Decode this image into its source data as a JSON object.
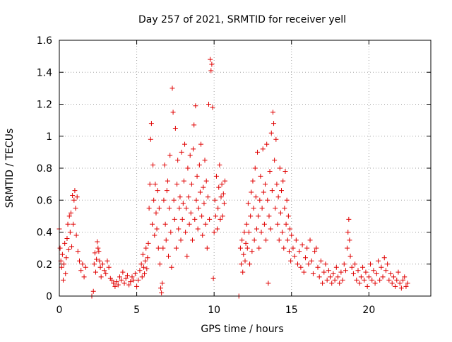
{
  "chart_data": {
    "type": "scatter",
    "title": "Day 257 of 2021, SRMTID for receiver yell",
    "xlabel": "GPS time / hours",
    "ylabel": "SRMTID / TECUs",
    "xlim": [
      0,
      24
    ],
    "ylim": [
      0,
      1.6
    ],
    "x_ticks": [
      0,
      5,
      10,
      15,
      20
    ],
    "x_tick_labels": [
      "0",
      "5",
      "10",
      "15",
      "20"
    ],
    "y_ticks": [
      0,
      0.2,
      0.4,
      0.6,
      0.8,
      1.0,
      1.2,
      1.4,
      1.6
    ],
    "y_tick_labels": [
      "0",
      "0.2",
      "0.4",
      "0.6",
      "0.8",
      "1",
      "1.2",
      "1.4",
      "1.6"
    ],
    "grid": true,
    "marker": "+",
    "marker_color": "#e00000",
    "series": [
      {
        "name": "SRMTID",
        "points": [
          [
            0.0,
            0.42
          ],
          [
            0.05,
            0.3
          ],
          [
            0.1,
            0.22
          ],
          [
            0.15,
            0.18
          ],
          [
            0.2,
            0.26
          ],
          [
            0.25,
            0.1
          ],
          [
            0.3,
            0.2
          ],
          [
            0.35,
            0.33
          ],
          [
            0.4,
            0.14
          ],
          [
            0.45,
            0.24
          ],
          [
            0.5,
            0.36
          ],
          [
            0.55,
            0.45
          ],
          [
            0.6,
            0.29
          ],
          [
            0.65,
            0.5
          ],
          [
            0.7,
            0.4
          ],
          [
            0.75,
            0.52
          ],
          [
            0.8,
            0.31
          ],
          [
            0.85,
            0.63
          ],
          [
            0.9,
            0.45
          ],
          [
            0.95,
            0.6
          ],
          [
            1.0,
            0.66
          ],
          [
            1.05,
            0.55
          ],
          [
            1.1,
            0.38
          ],
          [
            1.15,
            0.62
          ],
          [
            1.2,
            0.28
          ],
          [
            1.3,
            0.22
          ],
          [
            1.4,
            0.16
          ],
          [
            1.5,
            0.2
          ],
          [
            1.6,
            0.12
          ],
          [
            1.7,
            0.18
          ],
          [
            2.1,
            0.0
          ],
          [
            2.2,
            0.03
          ],
          [
            2.25,
            0.2
          ],
          [
            2.3,
            0.27
          ],
          [
            2.35,
            0.15
          ],
          [
            2.4,
            0.23
          ],
          [
            2.45,
            0.34
          ],
          [
            2.5,
            0.3
          ],
          [
            2.55,
            0.28
          ],
          [
            2.6,
            0.22
          ],
          [
            2.65,
            0.18
          ],
          [
            2.7,
            0.12
          ],
          [
            2.8,
            0.2
          ],
          [
            2.9,
            0.16
          ],
          [
            3.0,
            0.14
          ],
          [
            3.1,
            0.22
          ],
          [
            3.2,
            0.18
          ],
          [
            3.3,
            0.11
          ],
          [
            3.4,
            0.1
          ],
          [
            3.5,
            0.08
          ],
          [
            3.6,
            0.06
          ],
          [
            3.7,
            0.09
          ],
          [
            3.8,
            0.07
          ],
          [
            3.9,
            0.12
          ],
          [
            4.0,
            0.1
          ],
          [
            4.1,
            0.15
          ],
          [
            4.2,
            0.08
          ],
          [
            4.3,
            0.11
          ],
          [
            4.4,
            0.13
          ],
          [
            4.5,
            0.07
          ],
          [
            4.6,
            0.09
          ],
          [
            4.7,
            0.12
          ],
          [
            4.8,
            0.1
          ],
          [
            4.9,
            0.14
          ],
          [
            5.0,
            0.06
          ],
          [
            5.1,
            0.1
          ],
          [
            5.2,
            0.16
          ],
          [
            5.3,
            0.2
          ],
          [
            5.35,
            0.12
          ],
          [
            5.4,
            0.26
          ],
          [
            5.45,
            0.18
          ],
          [
            5.5,
            0.14
          ],
          [
            5.55,
            0.22
          ],
          [
            5.6,
            0.3
          ],
          [
            5.65,
            0.17
          ],
          [
            5.7,
            0.24
          ],
          [
            5.75,
            0.33
          ],
          [
            5.8,
            0.55
          ],
          [
            5.85,
            0.7
          ],
          [
            5.9,
            0.98
          ],
          [
            5.95,
            1.08
          ],
          [
            6.0,
            0.45
          ],
          [
            6.05,
            0.82
          ],
          [
            6.1,
            0.6
          ],
          [
            6.15,
            0.38
          ],
          [
            6.2,
            0.7
          ],
          [
            6.25,
            0.52
          ],
          [
            6.3,
            0.42
          ],
          [
            6.35,
            0.66
          ],
          [
            6.4,
            0.3
          ],
          [
            6.45,
            0.55
          ],
          [
            6.5,
            0.2
          ],
          [
            6.55,
            0.05
          ],
          [
            6.6,
            0.02
          ],
          [
            6.65,
            0.08
          ],
          [
            6.7,
            0.3
          ],
          [
            6.75,
            0.6
          ],
          [
            6.8,
            0.82
          ],
          [
            6.85,
            0.45
          ],
          [
            6.9,
            0.35
          ],
          [
            6.95,
            0.66
          ],
          [
            7.0,
            0.72
          ],
          [
            7.05,
            0.25
          ],
          [
            7.1,
            0.55
          ],
          [
            7.15,
            0.88
          ],
          [
            7.2,
            0.4
          ],
          [
            7.25,
            0.18
          ],
          [
            7.3,
            1.3
          ],
          [
            7.35,
            1.15
          ],
          [
            7.4,
            0.6
          ],
          [
            7.45,
            0.48
          ],
          [
            7.5,
            1.05
          ],
          [
            7.55,
            0.3
          ],
          [
            7.6,
            0.7
          ],
          [
            7.65,
            0.85
          ],
          [
            7.7,
            0.42
          ],
          [
            7.75,
            0.55
          ],
          [
            7.8,
            0.62
          ],
          [
            7.85,
            0.35
          ],
          [
            7.9,
            0.9
          ],
          [
            7.95,
            0.48
          ],
          [
            8.0,
            0.58
          ],
          [
            8.05,
            0.72
          ],
          [
            8.1,
            0.95
          ],
          [
            8.15,
            0.4
          ],
          [
            8.2,
            0.55
          ],
          [
            8.25,
            0.25
          ],
          [
            8.3,
            0.8
          ],
          [
            8.35,
            0.62
          ],
          [
            8.4,
            0.45
          ],
          [
            8.45,
            0.88
          ],
          [
            8.5,
            0.52
          ],
          [
            8.55,
            0.7
          ],
          [
            8.6,
            0.35
          ],
          [
            8.65,
            0.92
          ],
          [
            8.7,
            1.07
          ],
          [
            8.75,
            0.48
          ],
          [
            8.8,
            1.19
          ],
          [
            8.85,
            0.6
          ],
          [
            8.9,
            0.75
          ],
          [
            8.95,
            0.42
          ],
          [
            9.0,
            0.55
          ],
          [
            9.05,
            0.82
          ],
          [
            9.1,
            0.65
          ],
          [
            9.15,
            0.95
          ],
          [
            9.2,
            0.5
          ],
          [
            9.25,
            0.38
          ],
          [
            9.3,
            0.68
          ],
          [
            9.35,
            0.58
          ],
          [
            9.4,
            0.85
          ],
          [
            9.45,
            0.45
          ],
          [
            9.5,
            0.72
          ],
          [
            9.55,
            0.3
          ],
          [
            9.6,
            0.62
          ],
          [
            9.65,
            1.2
          ],
          [
            9.7,
            0.48
          ],
          [
            9.75,
            1.48
          ],
          [
            9.8,
            1.41
          ],
          [
            9.85,
            1.45
          ],
          [
            9.9,
            1.18
          ],
          [
            9.95,
            0.11
          ],
          [
            10.0,
            0.4
          ],
          [
            10.05,
            0.6
          ],
          [
            10.1,
            0.5
          ],
          [
            10.15,
            0.75
          ],
          [
            10.2,
            0.42
          ],
          [
            10.25,
            0.55
          ],
          [
            10.3,
            0.68
          ],
          [
            10.35,
            0.82
          ],
          [
            10.4,
            0.48
          ],
          [
            10.45,
            0.62
          ],
          [
            10.5,
            0.7
          ],
          [
            10.55,
            0.5
          ],
          [
            10.6,
            0.64
          ],
          [
            10.65,
            0.58
          ],
          [
            10.7,
            0.72
          ],
          [
            11.6,
            0.0
          ],
          [
            11.7,
            0.3
          ],
          [
            11.75,
            0.2
          ],
          [
            11.8,
            0.35
          ],
          [
            11.85,
            0.15
          ],
          [
            11.9,
            0.26
          ],
          [
            11.95,
            0.4
          ],
          [
            12.0,
            0.22
          ],
          [
            12.05,
            0.33
          ],
          [
            12.1,
            0.45
          ],
          [
            12.15,
            0.3
          ],
          [
            12.2,
            0.58
          ],
          [
            12.25,
            0.4
          ],
          [
            12.3,
            0.2
          ],
          [
            12.35,
            0.5
          ],
          [
            12.4,
            0.65
          ],
          [
            12.45,
            0.28
          ],
          [
            12.5,
            0.72
          ],
          [
            12.55,
            0.55
          ],
          [
            12.6,
            0.35
          ],
          [
            12.65,
            0.8
          ],
          [
            12.7,
            0.62
          ],
          [
            12.75,
            0.42
          ],
          [
            12.8,
            0.9
          ],
          [
            12.85,
            0.5
          ],
          [
            12.9,
            0.3
          ],
          [
            12.95,
            0.6
          ],
          [
            13.0,
            0.75
          ],
          [
            13.05,
            0.4
          ],
          [
            13.1,
            0.55
          ],
          [
            13.15,
            0.92
          ],
          [
            13.2,
            0.65
          ],
          [
            13.25,
            0.45
          ],
          [
            13.3,
            0.7
          ],
          [
            13.35,
            0.35
          ],
          [
            13.4,
            0.95
          ],
          [
            13.45,
            0.6
          ],
          [
            13.5,
            0.08
          ],
          [
            13.55,
            0.5
          ],
          [
            13.6,
            0.78
          ],
          [
            13.65,
            0.42
          ],
          [
            13.7,
            1.02
          ],
          [
            13.75,
            0.66
          ],
          [
            13.8,
            1.15
          ],
          [
            13.85,
            1.08
          ],
          [
            13.9,
            0.85
          ],
          [
            13.95,
            0.55
          ],
          [
            14.0,
            0.98
          ],
          [
            14.05,
            0.7
          ],
          [
            14.1,
            0.45
          ],
          [
            14.15,
            0.62
          ],
          [
            14.2,
            0.35
          ],
          [
            14.25,
            0.8
          ],
          [
            14.3,
            0.52
          ],
          [
            14.35,
            0.66
          ],
          [
            14.4,
            0.4
          ],
          [
            14.45,
            0.72
          ],
          [
            14.5,
            0.3
          ],
          [
            14.55,
            0.55
          ],
          [
            14.6,
            0.78
          ],
          [
            14.65,
            0.45
          ],
          [
            14.7,
            0.6
          ],
          [
            14.75,
            0.35
          ],
          [
            14.8,
            0.5
          ],
          [
            14.85,
            0.28
          ],
          [
            14.9,
            0.42
          ],
          [
            14.95,
            0.22
          ],
          [
            15.0,
            0.38
          ],
          [
            15.1,
            0.3
          ],
          [
            15.2,
            0.25
          ],
          [
            15.3,
            0.35
          ],
          [
            15.4,
            0.2
          ],
          [
            15.5,
            0.28
          ],
          [
            15.6,
            0.18
          ],
          [
            15.7,
            0.32
          ],
          [
            15.8,
            0.15
          ],
          [
            15.9,
            0.24
          ],
          [
            16.0,
            0.3
          ],
          [
            16.1,
            0.2
          ],
          [
            16.2,
            0.35
          ],
          [
            16.3,
            0.22
          ],
          [
            16.4,
            0.14
          ],
          [
            16.5,
            0.28
          ],
          [
            16.6,
            0.3
          ],
          [
            16.7,
            0.18
          ],
          [
            16.8,
            0.12
          ],
          [
            16.9,
            0.22
          ],
          [
            17.0,
            0.08
          ],
          [
            17.1,
            0.15
          ],
          [
            17.2,
            0.2
          ],
          [
            17.3,
            0.1
          ],
          [
            17.4,
            0.16
          ],
          [
            17.5,
            0.12
          ],
          [
            17.6,
            0.08
          ],
          [
            17.7,
            0.14
          ],
          [
            17.8,
            0.1
          ],
          [
            17.9,
            0.18
          ],
          [
            18.0,
            0.12
          ],
          [
            18.1,
            0.08
          ],
          [
            18.2,
            0.15
          ],
          [
            18.3,
            0.1
          ],
          [
            18.4,
            0.2
          ],
          [
            18.5,
            0.16
          ],
          [
            18.6,
            0.3
          ],
          [
            18.65,
            0.4
          ],
          [
            18.7,
            0.48
          ],
          [
            18.75,
            0.35
          ],
          [
            18.8,
            0.25
          ],
          [
            18.9,
            0.18
          ],
          [
            19.0,
            0.14
          ],
          [
            19.1,
            0.2
          ],
          [
            19.2,
            0.1
          ],
          [
            19.3,
            0.16
          ],
          [
            19.4,
            0.08
          ],
          [
            19.5,
            0.12
          ],
          [
            19.6,
            0.18
          ],
          [
            19.7,
            0.1
          ],
          [
            19.8,
            0.15
          ],
          [
            19.9,
            0.06
          ],
          [
            20.0,
            0.12
          ],
          [
            20.1,
            0.2
          ],
          [
            20.2,
            0.1
          ],
          [
            20.3,
            0.16
          ],
          [
            20.4,
            0.08
          ],
          [
            20.5,
            0.14
          ],
          [
            20.6,
            0.22
          ],
          [
            20.7,
            0.1
          ],
          [
            20.8,
            0.18
          ],
          [
            20.9,
            0.12
          ],
          [
            21.0,
            0.24
          ],
          [
            21.1,
            0.16
          ],
          [
            21.2,
            0.2
          ],
          [
            21.3,
            0.1
          ],
          [
            21.4,
            0.14
          ],
          [
            21.5,
            0.08
          ],
          [
            21.6,
            0.12
          ],
          [
            21.7,
            0.06
          ],
          [
            21.8,
            0.1
          ],
          [
            21.9,
            0.15
          ],
          [
            22.0,
            0.08
          ],
          [
            22.1,
            0.05
          ],
          [
            22.2,
            0.1
          ],
          [
            22.3,
            0.12
          ],
          [
            22.4,
            0.06
          ],
          [
            22.5,
            0.08
          ]
        ]
      }
    ]
  }
}
